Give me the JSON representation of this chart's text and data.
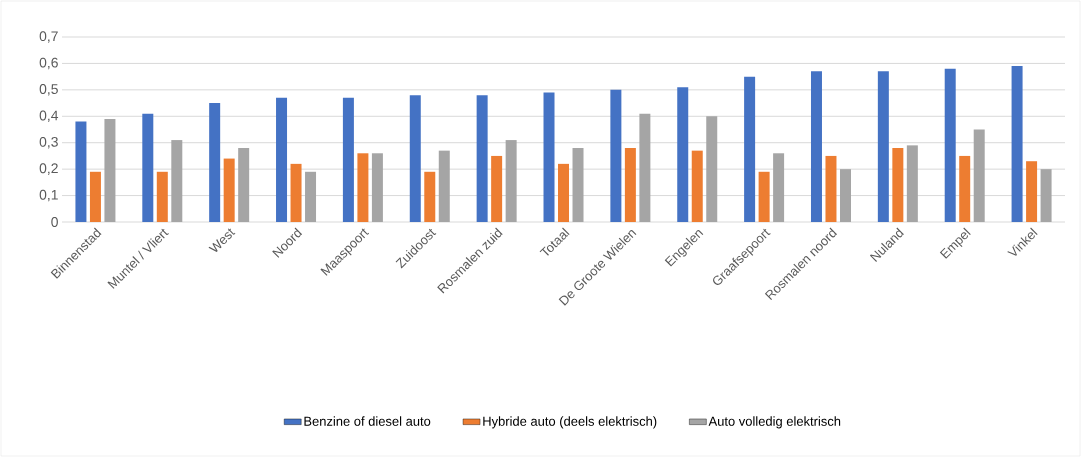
{
  "chart_data": {
    "type": "bar",
    "categories": [
      "Binnenstad",
      "Muntel / Vliert",
      "West",
      "Noord",
      "Maaspoort",
      "Zuidoost",
      "Rosmalen zuid",
      "Totaal",
      "De Groote Wielen",
      "Engelen",
      "Graafsepoort",
      "Rosmalen noord",
      "Nuland",
      "Empel",
      "Vinkel"
    ],
    "series": [
      {
        "name": "Benzine of diesel auto",
        "color": "#4472c4",
        "values": [
          0.38,
          0.41,
          0.45,
          0.47,
          0.47,
          0.48,
          0.48,
          0.49,
          0.5,
          0.51,
          0.55,
          0.57,
          0.57,
          0.58,
          0.59
        ]
      },
      {
        "name": "Hybride auto (deels elektrisch)",
        "color": "#ed7d31",
        "values": [
          0.19,
          0.19,
          0.24,
          0.22,
          0.26,
          0.19,
          0.25,
          0.22,
          0.28,
          0.27,
          0.19,
          0.25,
          0.28,
          0.25,
          0.23
        ]
      },
      {
        "name": "Auto volledig elektrisch",
        "color": "#a5a5a5",
        "values": [
          0.39,
          0.31,
          0.28,
          0.19,
          0.26,
          0.27,
          0.31,
          0.28,
          0.41,
          0.4,
          0.26,
          0.2,
          0.29,
          0.35,
          0.2
        ]
      }
    ],
    "ylim": [
      0,
      0.7
    ],
    "yticks": [
      0,
      {
        "value": 0.1,
        "label": "0,1"
      },
      {
        "value": 0.2,
        "label": "0,2"
      },
      {
        "value": 0.3,
        "label": "0,3"
      },
      {
        "value": 0.4,
        "label": "0,4"
      },
      {
        "value": 0.5,
        "label": "0,5"
      },
      {
        "value": 0.6,
        "label": "0,6"
      },
      {
        "value": 0.7,
        "label": "0,7"
      }
    ],
    "grid": "y",
    "legend": "bottom"
  }
}
